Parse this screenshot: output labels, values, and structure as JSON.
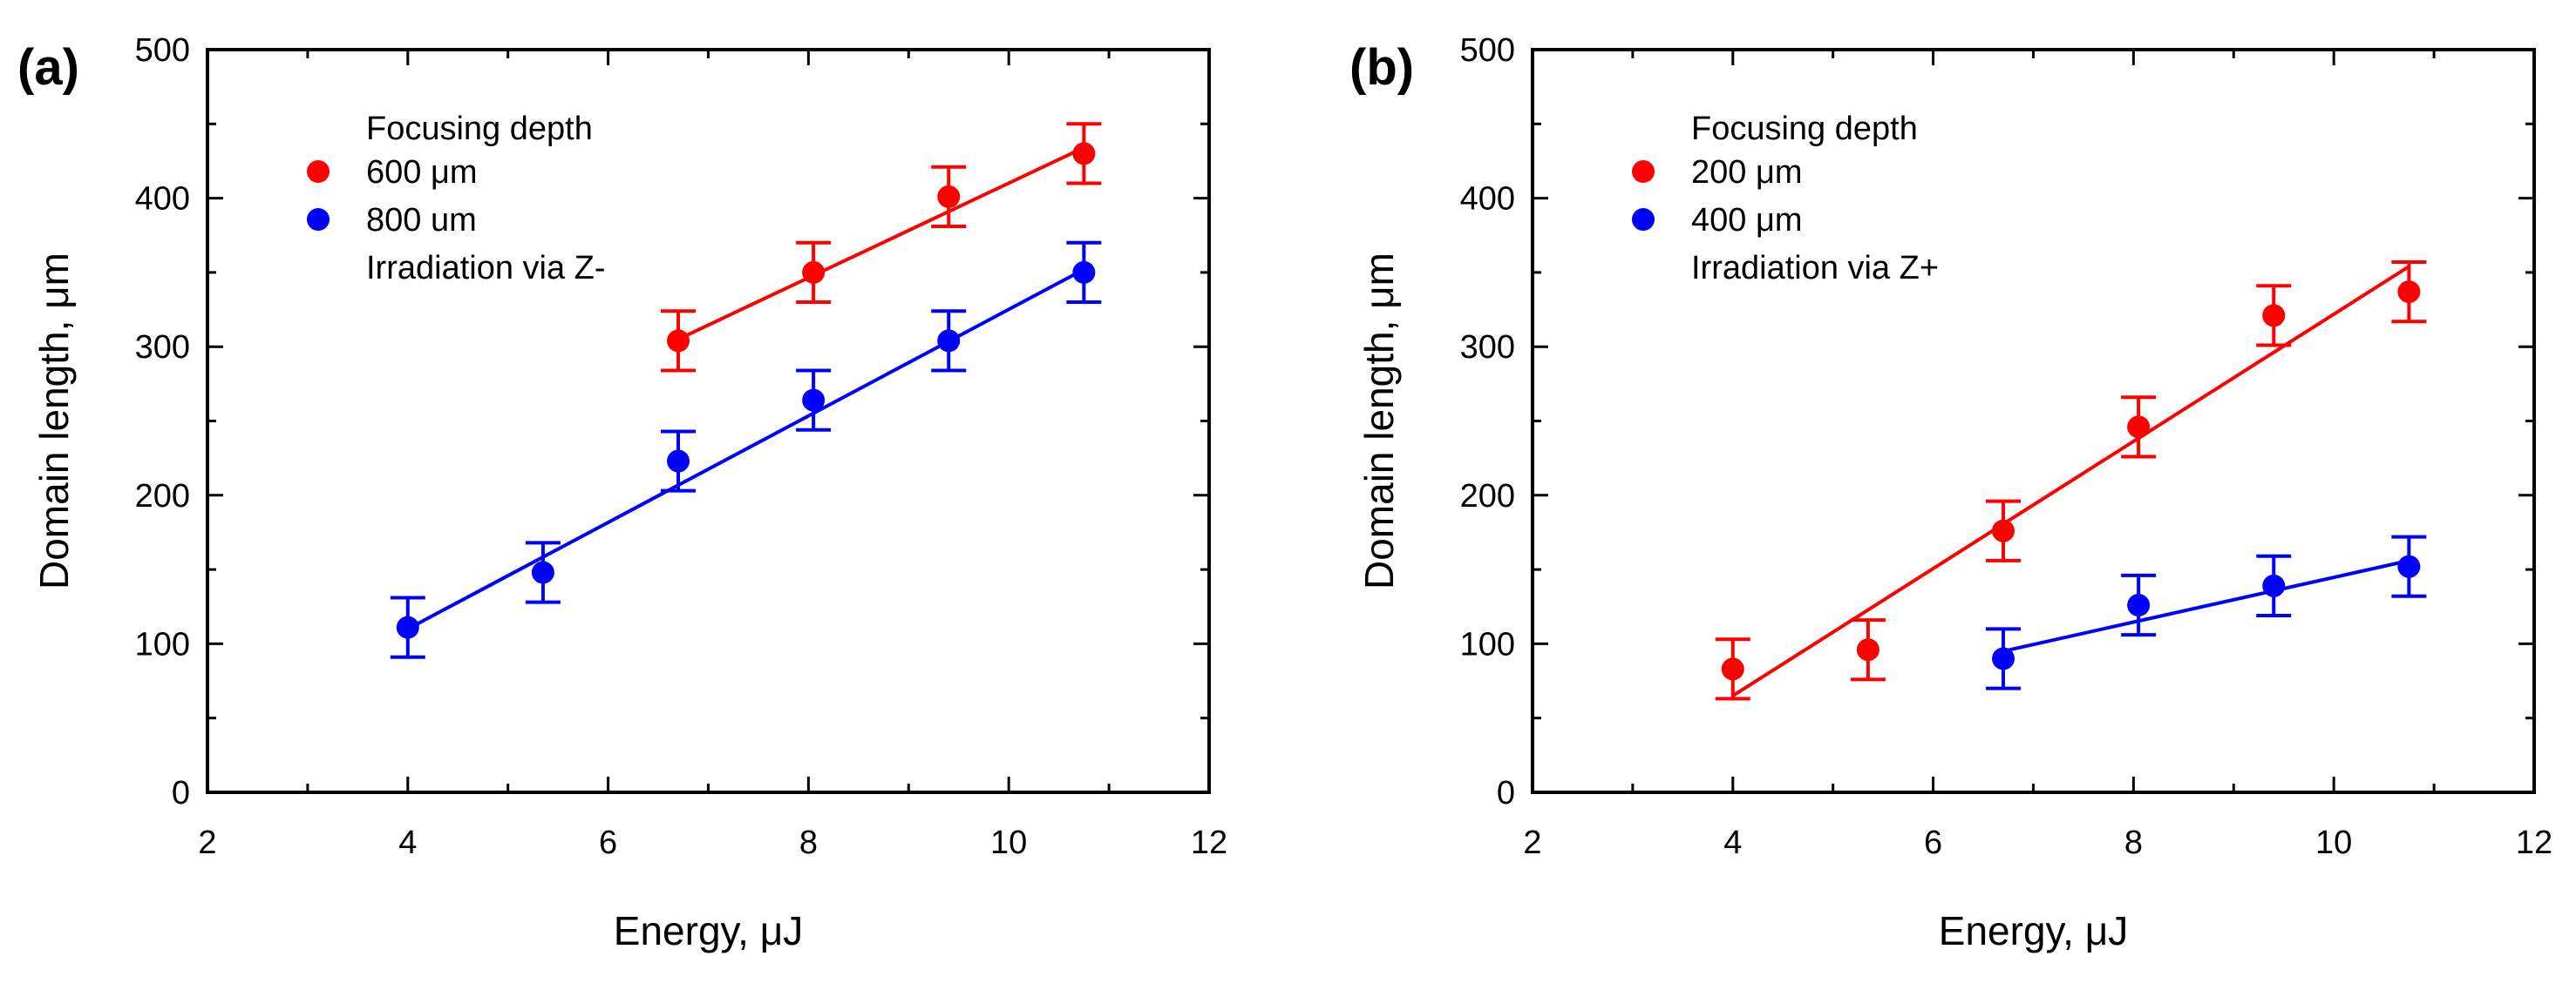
{
  "chart_data": [
    {
      "type": "scatter",
      "panel_label": "(a)",
      "xlabel": "Energy, μJ",
      "ylabel": "Domain length, μm",
      "xlim": [
        2,
        12
      ],
      "ylim": [
        0,
        500
      ],
      "x_ticks": [
        2,
        4,
        6,
        8,
        10,
        12
      ],
      "y_ticks": [
        0,
        100,
        200,
        300,
        400,
        500
      ],
      "legend_title": "Focusing depth",
      "legend_note": "Irradiation via Z-",
      "series": [
        {
          "name": "600 μm",
          "color": "#ff0000",
          "x": [
            6.7,
            8.05,
            9.4,
            10.75
          ],
          "y": [
            304,
            350,
            401,
            430
          ],
          "yerr": 20,
          "fit": [
            [
              6.7,
              305
            ],
            [
              10.75,
              434
            ]
          ]
        },
        {
          "name": "800 um",
          "color": "#0000ff",
          "x": [
            4.0,
            5.35,
            6.7,
            8.05,
            9.4,
            10.75
          ],
          "y": [
            111,
            148,
            223,
            264,
            304,
            350
          ],
          "yerr": 20,
          "fit": [
            [
              4.0,
              110
            ],
            [
              10.75,
              352
            ]
          ]
        }
      ]
    },
    {
      "type": "scatter",
      "panel_label": "(b)",
      "xlabel": "Energy, μJ",
      "ylabel": "Domain length, μm",
      "xlim": [
        2,
        12
      ],
      "ylim": [
        0,
        500
      ],
      "x_ticks": [
        2,
        4,
        6,
        8,
        10,
        12
      ],
      "y_ticks": [
        0,
        100,
        200,
        300,
        400,
        500
      ],
      "legend_title": "Focusing depth",
      "legend_note": "Irradiation via Z+",
      "series": [
        {
          "name": "200 μm",
          "color": "#ff0000",
          "x": [
            4.0,
            5.35,
            6.7,
            8.05,
            9.4,
            10.75
          ],
          "y": [
            83,
            96,
            176,
            246,
            321,
            337
          ],
          "yerr": 20,
          "fit": [
            [
              4.0,
              65
            ],
            [
              10.75,
              354
            ]
          ]
        },
        {
          "name": "400 μm",
          "color": "#0000ff",
          "x": [
            6.7,
            8.05,
            9.4,
            10.75
          ],
          "y": [
            90,
            126,
            139,
            152
          ],
          "yerr": 20,
          "fit": [
            [
              6.7,
              95
            ],
            [
              10.75,
              156
            ]
          ]
        }
      ]
    }
  ]
}
